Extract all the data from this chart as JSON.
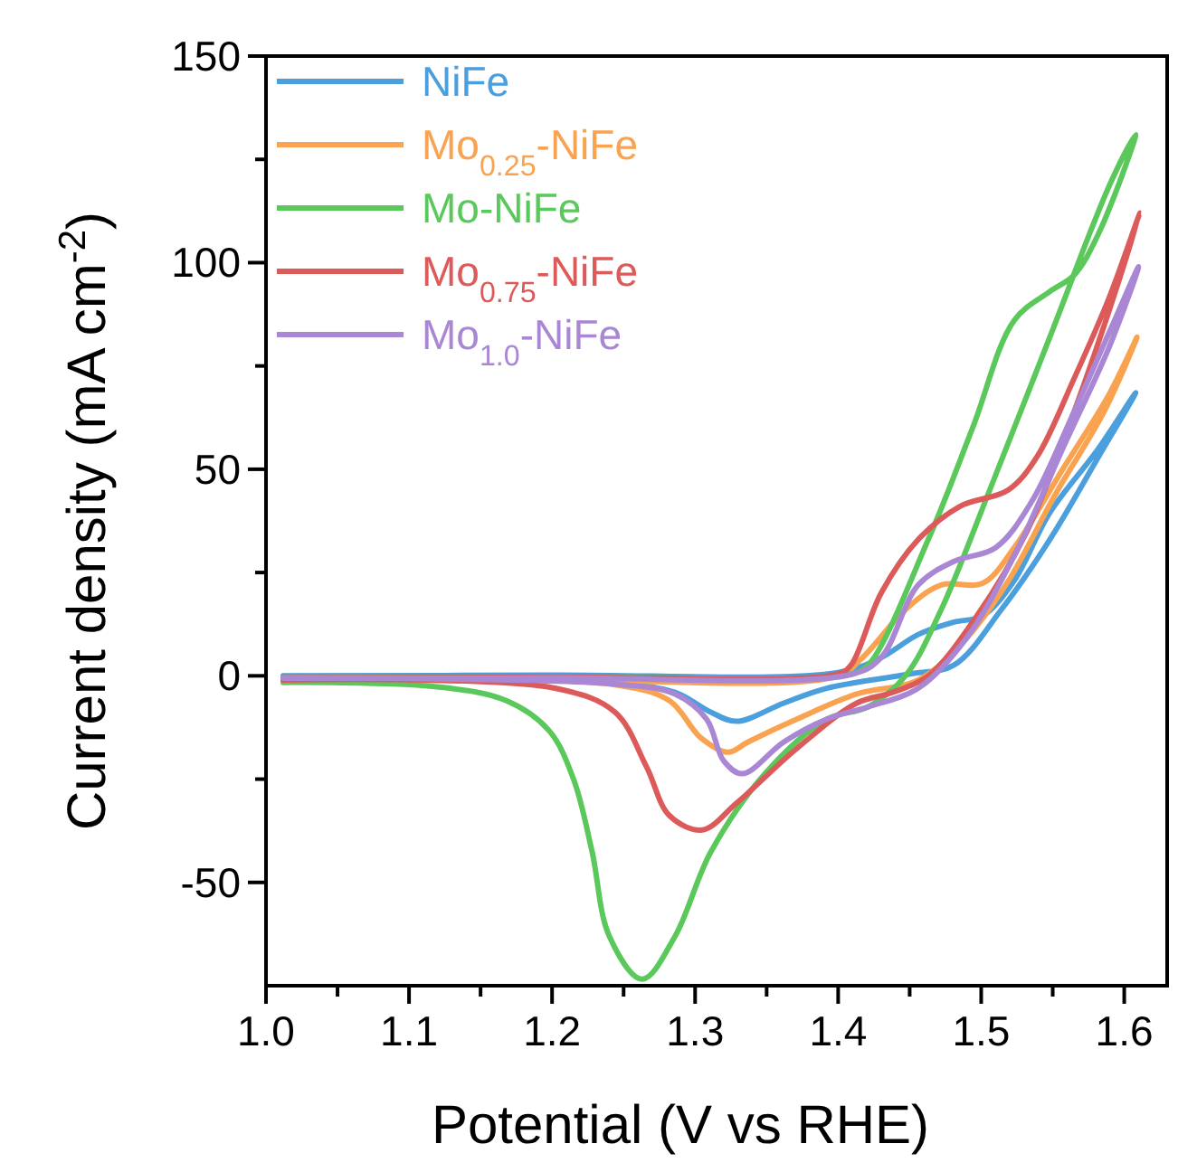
{
  "chart_data": {
    "type": "line",
    "xlabel": "Potential (V vs RHE)",
    "ylabel": "Current density (mA cm$^{-2}$)",
    "xlim": [
      1.0,
      1.63
    ],
    "ylim": [
      -75,
      150
    ],
    "xticks": [
      {
        "value": 1.0,
        "label": "1.0"
      },
      {
        "value": 1.05,
        "label": null
      },
      1.1,
      {
        "value": 1.15,
        "label": null
      },
      1.2,
      {
        "value": 1.25,
        "label": null
      },
      1.3,
      {
        "value": 1.35,
        "label": null
      },
      1.4,
      {
        "value": 1.45,
        "label": null
      },
      1.5,
      {
        "value": 1.55,
        "label": null
      },
      1.6
    ],
    "yticks": [
      -50,
      {
        "value": -25,
        "label": null
      },
      0,
      {
        "value": 25,
        "label": null
      },
      50,
      {
        "value": 75,
        "label": null
      },
      100,
      {
        "value": 125,
        "label": null
      },
      150
    ],
    "grid": false,
    "legend": "top left",
    "marker": "none",
    "line_style": "solid",
    "series": [
      {
        "name": "NiFe",
        "color": "#4a9fdc",
        "x": [
          1.012,
          1.2,
          1.4,
          1.43,
          1.456,
          1.481,
          1.501,
          1.523,
          1.548,
          1.582,
          1.608,
          1.582,
          1.548,
          1.514,
          1.481,
          1.451,
          1.392,
          1.362,
          1.329,
          1.311,
          1.286,
          1.244,
          1.012
        ],
        "values": [
          0,
          0.2,
          0.8,
          4.4,
          10,
          13,
          14.5,
          23,
          39.5,
          55,
          68.5,
          53,
          33,
          16,
          2.6,
          0.5,
          -3,
          -6.6,
          -11,
          -8.8,
          -4,
          -1.8,
          -0.5
        ]
      },
      {
        "name": "Mo$_{0.25}$-NiFe",
        "color": "#f9a350",
        "x": [
          1.012,
          1.2,
          1.4,
          1.417,
          1.447,
          1.472,
          1.501,
          1.523,
          1.557,
          1.59,
          1.609,
          1.586,
          1.552,
          1.519,
          1.489,
          1.456,
          1.413,
          1.371,
          1.337,
          1.323,
          1.304,
          1.282,
          1.244,
          1.012
        ],
        "values": [
          -1.2,
          -1,
          0,
          4.4,
          16,
          22,
          22.4,
          31,
          50,
          68.5,
          82,
          64,
          44,
          23,
          8.8,
          -1,
          -4.4,
          -10.5,
          -16,
          -18.5,
          -15,
          -6,
          -2.2,
          -0.5
        ]
      },
      {
        "name": "Mo-NiFe",
        "color": "#5ac85a",
        "x": [
          1.012,
          1.2,
          1.409,
          1.421,
          1.463,
          1.494,
          1.523,
          1.548,
          1.565,
          1.582,
          1.608,
          1.59,
          1.548,
          1.506,
          1.472,
          1.447,
          1.421,
          1.392,
          1.349,
          1.311,
          1.286,
          1.263,
          1.24,
          1.228,
          1.215,
          1.198,
          1.168,
          1.118,
          1.012
        ],
        "values": [
          -0.5,
          -0.3,
          0.5,
          2.6,
          33,
          60,
          86,
          93,
          97,
          107,
          131,
          119,
          82,
          45,
          16,
          0,
          -7.5,
          -10.5,
          -23.6,
          -42.6,
          -63,
          -73.4,
          -63,
          -42.6,
          -25,
          -13.3,
          -6,
          -2.6,
          -1.6
        ]
      },
      {
        "name": "Mo$_{0.75}$-NiFe",
        "color": "#dc5a5a",
        "x": [
          1.012,
          1.2,
          1.4,
          1.409,
          1.43,
          1.456,
          1.485,
          1.519,
          1.539,
          1.565,
          1.59,
          1.611,
          1.59,
          1.565,
          1.532,
          1.497,
          1.463,
          1.438,
          1.413,
          1.371,
          1.329,
          1.305,
          1.282,
          1.266,
          1.244,
          1.202,
          1.012
        ],
        "values": [
          -0.5,
          -0.3,
          0.5,
          2.6,
          20,
          33,
          41,
          45,
          53,
          72,
          92,
          112,
          89,
          64,
          35,
          14.5,
          0,
          -4,
          -6.6,
          -17.6,
          -30.8,
          -37.3,
          -33.8,
          -22,
          -8.8,
          -3,
          -1
        ]
      },
      {
        "name": "Mo$_{1.0}$-NiFe",
        "color": "#a987d4",
        "x": [
          1.012,
          1.2,
          1.41,
          1.43,
          1.456,
          1.481,
          1.51,
          1.535,
          1.565,
          1.59,
          1.61,
          1.59,
          1.557,
          1.523,
          1.489,
          1.456,
          1.421,
          1.392,
          1.362,
          1.333,
          1.32,
          1.308,
          1.286,
          1.244,
          1.012
        ],
        "values": [
          -0.6,
          -0.5,
          0.4,
          4.4,
          22,
          27.7,
          31,
          42,
          64,
          83.5,
          99,
          80,
          55,
          29,
          8.8,
          -3,
          -7.5,
          -10.5,
          -16,
          -23.7,
          -20.6,
          -10.5,
          -4.4,
          -2,
          -0.5
        ]
      }
    ]
  }
}
